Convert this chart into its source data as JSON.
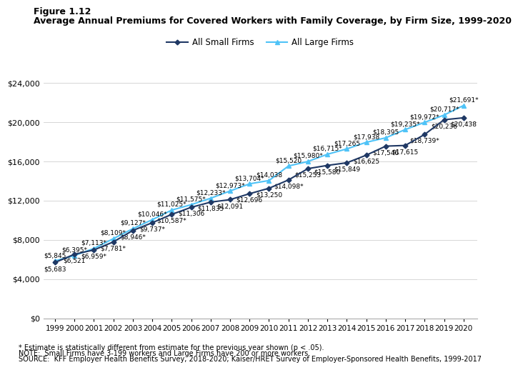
{
  "years": [
    1999,
    2000,
    2001,
    2002,
    2003,
    2004,
    2005,
    2006,
    2007,
    2008,
    2009,
    2010,
    2011,
    2012,
    2013,
    2014,
    2015,
    2016,
    2017,
    2018,
    2019,
    2020
  ],
  "small_firms": [
    5683,
    6521,
    6959,
    7781,
    8946,
    9737,
    10587,
    11306,
    11835,
    12091,
    12696,
    13250,
    14098,
    15253,
    15580,
    15849,
    16625,
    17546,
    17615,
    18739,
    20236,
    20438
  ],
  "large_firms": [
    5845,
    6395,
    7113,
    8109,
    9127,
    10046,
    11025,
    11575,
    12233,
    12973,
    13704,
    14038,
    15520,
    15980,
    16715,
    17265,
    17938,
    18395,
    19235,
    19972,
    20717,
    21691
  ],
  "small_asterisk": [
    false,
    false,
    true,
    true,
    true,
    true,
    true,
    false,
    false,
    false,
    false,
    false,
    true,
    false,
    false,
    false,
    false,
    false,
    false,
    true,
    false,
    false
  ],
  "large_asterisk": [
    false,
    true,
    true,
    true,
    true,
    true,
    true,
    true,
    true,
    true,
    true,
    false,
    false,
    true,
    true,
    false,
    false,
    false,
    true,
    true,
    true,
    true
  ],
  "small_color": "#1f3864",
  "large_color": "#4fc3f7",
  "small_label": "All Small Firms",
  "large_label": "All Large Firms",
  "title_line1": "Figure 1.12",
  "title_line2": "Average Annual Premiums for Covered Workers with Family Coverage, by Firm Size, 1999-2020",
  "ylim": [
    0,
    26000
  ],
  "yticks": [
    0,
    4000,
    8000,
    12000,
    16000,
    20000,
    24000
  ],
  "footnote1": "* Estimate is statistically different from estimate for the previous year shown (p < .05).",
  "footnote2": "NOTE:  Small Firms have 3-199 workers and Large Firms have 200 or more workers.",
  "footnote3": "SOURCE:  KFF Employer Health Benefits Survey, 2018-2020; Kaiser/HRET Survey of Employer-Sponsored Health Benefits, 1999-2017",
  "background_color": "#ffffff",
  "label_fontsize": 6.5,
  "marker_size": 4,
  "small_label_offsets": {
    "above": [
      false,
      false,
      false,
      false,
      false,
      false,
      false,
      false,
      false,
      false,
      false,
      false,
      false,
      false,
      false,
      false,
      false,
      false,
      false,
      false,
      false,
      false
    ]
  }
}
